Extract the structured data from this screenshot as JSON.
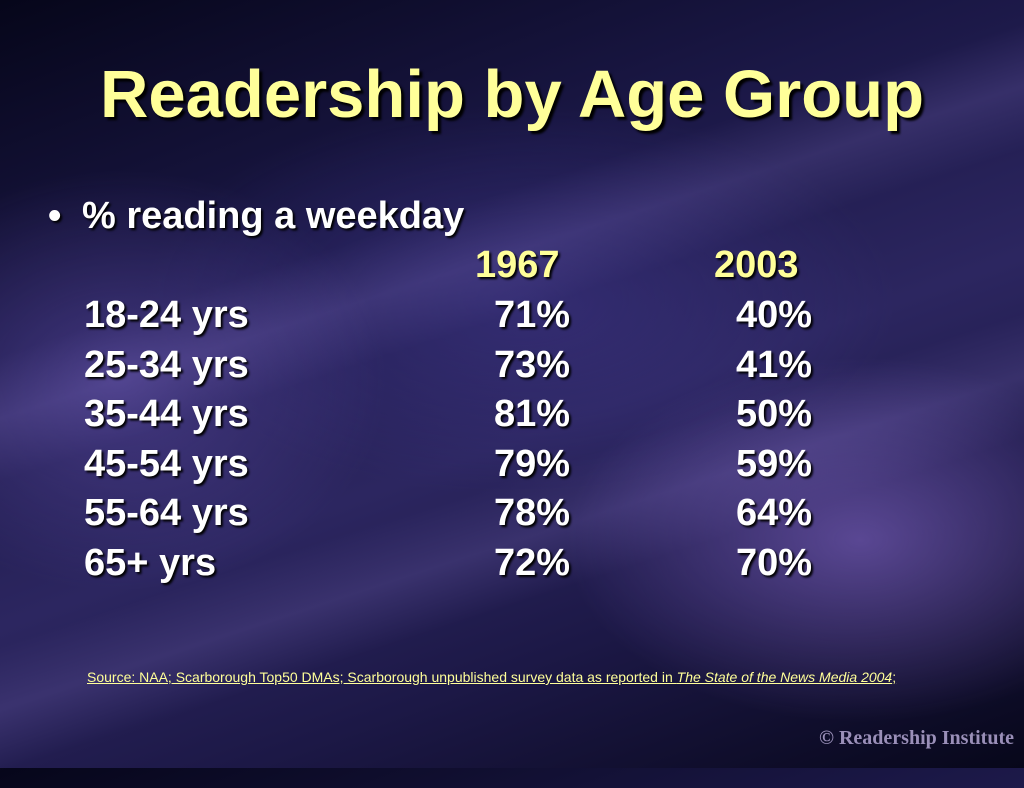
{
  "slide": {
    "title": "Readership by Age Group",
    "bullet": "•",
    "subtitle": "% reading a weekday",
    "col1_year": "1967",
    "col2_year": "2003",
    "rows": [
      {
        "age": "18-24 yrs",
        "v1967": "71%",
        "v2003": "40%"
      },
      {
        "age": "25-34 yrs",
        "v1967": "73%",
        "v2003": "41%"
      },
      {
        "age": "35-44 yrs",
        "v1967": "81%",
        "v2003": "50%"
      },
      {
        "age": "45-54 yrs",
        "v1967": "79%",
        "v2003": "59%"
      },
      {
        "age": "55-64 yrs",
        "v1967": "78%",
        "v2003": "64%"
      },
      {
        "age": "65+ yrs",
        "v1967": "72%",
        "v2003": "70%"
      }
    ],
    "source_prefix": "Source: NAA; Scarborough Top50 DMAs; Scarborough unpublished survey data as reported in ",
    "source_publication": "The State of the News Media 2004",
    "source_suffix": ";",
    "copyright": "© Readership Institute"
  },
  "colors": {
    "title": "#ffff99",
    "body_text": "#ffffff",
    "source": "#ffff99",
    "copyright": "#9a8fb8",
    "background_dark": "#06061a",
    "background_mid": "#2c2660"
  }
}
